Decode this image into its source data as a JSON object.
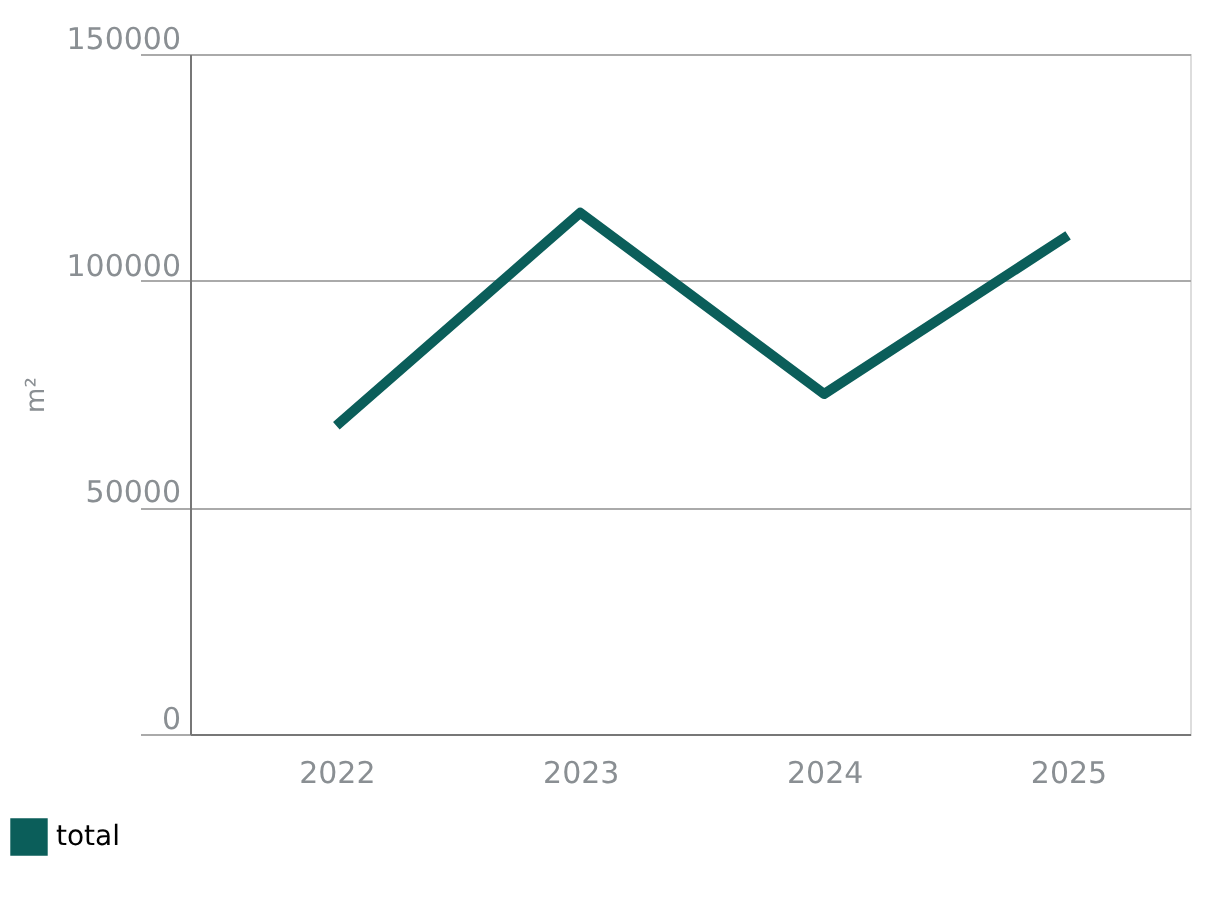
{
  "chart_data": {
    "type": "line",
    "ylabel": "m²",
    "categories": [
      "2022",
      "2023",
      "2024",
      "2025"
    ],
    "series": [
      {
        "name": "total",
        "color": "#0b5e5a",
        "values": [
          68000,
          115000,
          75000,
          110000
        ]
      }
    ],
    "ylim": [
      0,
      150000
    ],
    "yticks": [
      0,
      50000,
      100000,
      150000
    ],
    "grid": "y",
    "legend": "bottom left",
    "marker": "none",
    "line_style": "solid"
  }
}
